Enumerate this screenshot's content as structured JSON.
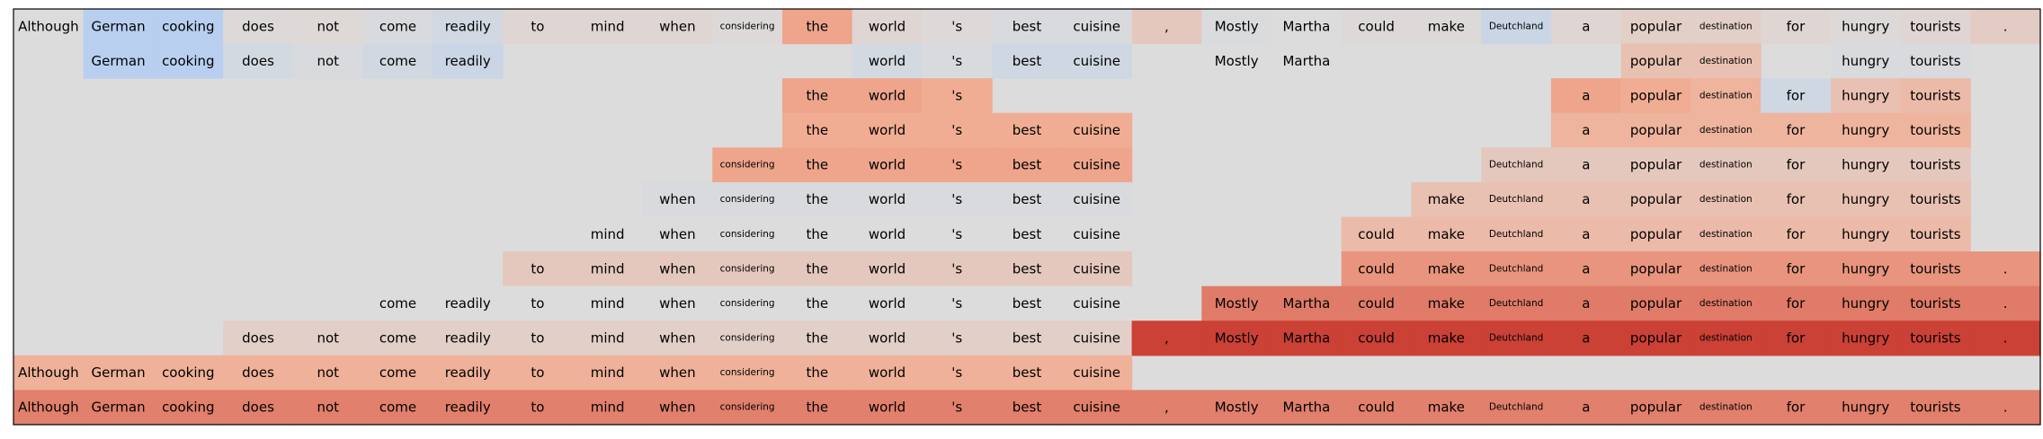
{
  "chart_data": {
    "type": "heatmap",
    "title": "",
    "xlabel": "",
    "ylabel": "",
    "tokens": [
      "Although",
      "German",
      "cooking",
      "does",
      "not",
      "come",
      "readily",
      "to",
      "mind",
      "when",
      "considering",
      "the",
      "world",
      "'s",
      "best",
      "cuisine",
      ",",
      "Mostly",
      "Martha",
      "could",
      "make",
      "Deutchland",
      "a",
      "popular",
      "destination",
      "for",
      "hungry",
      "tourists",
      "."
    ],
    "small_tokens": [
      "considering",
      "Deutchland",
      "destination"
    ],
    "color_scale": {
      "negative": "#b4cdf2",
      "neutral": "#dcdcdc",
      "positive": "#cb4136",
      "range": [
        -1,
        1
      ]
    },
    "rows": [
      [
        0.0,
        -0.4,
        -0.4,
        0.02,
        0.03,
        -0.05,
        -0.12,
        0.05,
        0.05,
        0.05,
        0.02,
        0.4,
        0.05,
        0.02,
        -0.05,
        -0.05,
        0.15,
        -0.02,
        0.0,
        0.02,
        0.02,
        -0.2,
        0.05,
        0.1,
        0.1,
        0.05,
        0.02,
        0.05,
        0.12
      ],
      [
        null,
        -0.4,
        -0.4,
        -0.1,
        -0.05,
        -0.12,
        -0.2,
        null,
        null,
        null,
        null,
        null,
        -0.1,
        -0.05,
        -0.15,
        -0.15,
        null,
        0.0,
        0.0,
        null,
        null,
        null,
        null,
        0.2,
        0.2,
        null,
        -0.05,
        -0.05,
        null
      ],
      [
        null,
        null,
        null,
        null,
        null,
        null,
        null,
        null,
        null,
        null,
        null,
        0.4,
        0.4,
        0.35,
        null,
        null,
        null,
        null,
        null,
        null,
        null,
        null,
        0.4,
        0.35,
        0.3,
        -0.15,
        0.2,
        0.25,
        null
      ],
      [
        null,
        null,
        null,
        null,
        null,
        null,
        null,
        null,
        null,
        null,
        null,
        0.35,
        0.35,
        0.35,
        0.35,
        0.35,
        null,
        null,
        null,
        null,
        null,
        null,
        0.3,
        0.3,
        0.3,
        0.3,
        0.3,
        0.3,
        null
      ],
      [
        null,
        null,
        null,
        null,
        null,
        null,
        null,
        null,
        null,
        null,
        0.4,
        0.4,
        0.4,
        0.4,
        0.4,
        0.4,
        null,
        null,
        null,
        null,
        null,
        0.15,
        0.15,
        0.15,
        0.15,
        0.15,
        0.15,
        0.15,
        null
      ],
      [
        null,
        null,
        null,
        null,
        null,
        null,
        null,
        null,
        null,
        -0.05,
        -0.05,
        -0.05,
        -0.05,
        -0.05,
        -0.05,
        -0.05,
        null,
        null,
        null,
        null,
        0.2,
        0.2,
        0.2,
        0.2,
        0.2,
        0.2,
        0.2,
        0.2,
        null
      ],
      [
        null,
        null,
        null,
        null,
        null,
        null,
        null,
        null,
        0.0,
        0.0,
        0.0,
        0.0,
        0.0,
        0.0,
        0.0,
        0.0,
        null,
        null,
        null,
        0.25,
        0.25,
        0.25,
        0.25,
        0.25,
        0.25,
        0.25,
        0.25,
        0.25,
        null
      ],
      [
        null,
        null,
        null,
        null,
        null,
        null,
        null,
        0.15,
        0.15,
        0.15,
        0.15,
        0.15,
        0.15,
        0.15,
        0.15,
        0.15,
        null,
        null,
        null,
        0.5,
        0.5,
        0.5,
        0.5,
        0.5,
        0.5,
        0.5,
        0.5,
        0.5,
        0.5
      ],
      [
        null,
        null,
        null,
        null,
        null,
        0.0,
        0.0,
        0.0,
        0.0,
        0.0,
        0.0,
        0.0,
        0.0,
        0.0,
        0.0,
        0.0,
        null,
        0.65,
        0.65,
        0.65,
        0.65,
        0.65,
        0.65,
        0.65,
        0.65,
        0.65,
        0.65,
        0.65,
        0.65
      ],
      [
        null,
        null,
        null,
        0.1,
        0.1,
        0.1,
        0.1,
        0.1,
        0.1,
        0.1,
        0.1,
        0.1,
        0.1,
        0.1,
        0.1,
        0.1,
        1.0,
        1.0,
        1.0,
        1.0,
        1.0,
        1.0,
        1.0,
        1.0,
        1.0,
        1.0,
        1.0,
        1.0,
        1.0
      ],
      [
        0.32,
        0.32,
        0.32,
        0.32,
        0.32,
        0.32,
        0.32,
        0.32,
        0.32,
        0.32,
        0.32,
        0.32,
        0.32,
        0.32,
        0.32,
        0.32,
        null,
        null,
        null,
        null,
        null,
        null,
        null,
        null,
        null,
        null,
        null,
        null,
        null
      ],
      [
        0.62,
        0.62,
        0.62,
        0.62,
        0.62,
        0.62,
        0.62,
        0.62,
        0.62,
        0.62,
        0.62,
        0.62,
        0.62,
        0.62,
        0.62,
        0.62,
        0.62,
        0.62,
        0.62,
        0.62,
        0.62,
        0.62,
        0.62,
        0.62,
        0.62,
        0.62,
        0.62,
        0.62,
        0.62
      ]
    ]
  }
}
